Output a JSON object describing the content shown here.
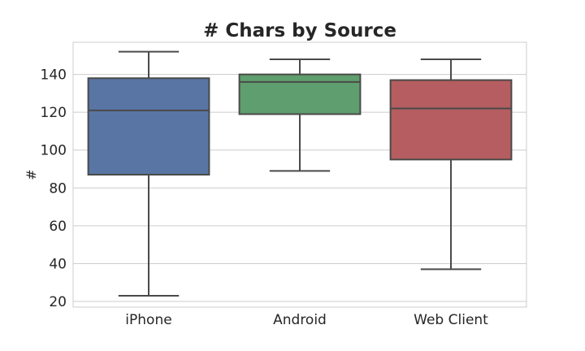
{
  "chart_data": {
    "type": "box",
    "title": "# Chars by Source",
    "xlabel": "",
    "ylabel": "#",
    "ylim": [
      17,
      157
    ],
    "yticks": [
      20,
      40,
      60,
      80,
      100,
      120,
      140
    ],
    "grid": true,
    "categories": [
      "iPhone",
      "Android",
      "Web Client"
    ],
    "boxes": [
      {
        "whisker_low": 23,
        "q1": 87,
        "median": 121,
        "q3": 138,
        "whisker_high": 152,
        "color": "#5975a4"
      },
      {
        "whisker_low": 89,
        "q1": 119,
        "median": 136,
        "q3": 140,
        "whisker_high": 148,
        "color": "#5f9e6e"
      },
      {
        "whisker_low": 37,
        "q1": 95,
        "median": 122,
        "q3": 137,
        "whisker_high": 148,
        "color": "#b55d60"
      }
    ]
  }
}
